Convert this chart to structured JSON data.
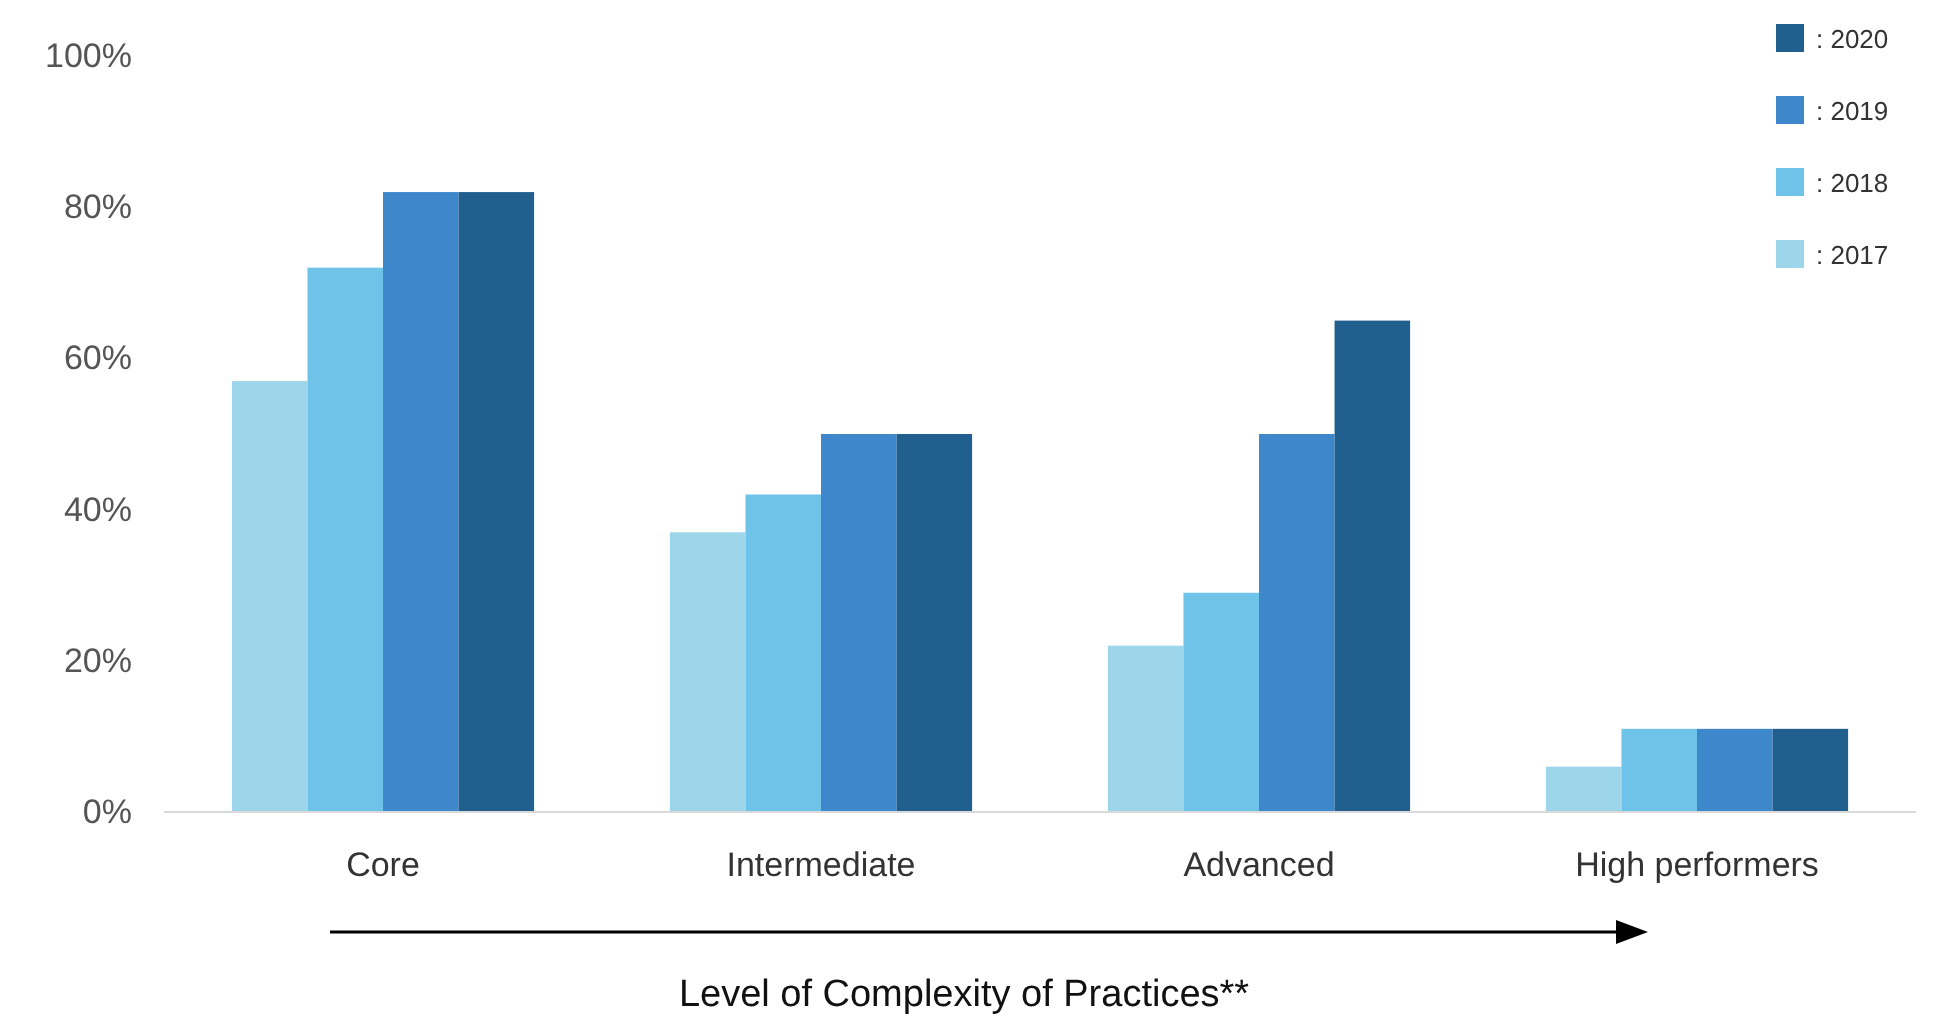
{
  "chart_data": {
    "type": "bar",
    "xlabel": "Level of Complexity of Practices**",
    "categories": [
      "Core",
      "Intermediate",
      "Advanced",
      "High performers"
    ],
    "series": [
      {
        "name": ": 2017",
        "color": "#9dd5ea",
        "values": [
          57,
          37,
          22,
          6
        ]
      },
      {
        "name": ": 2018",
        "color": "#6fc3e8",
        "values": [
          72,
          42,
          29,
          11
        ]
      },
      {
        "name": ": 2019",
        "color": "#3f87cb",
        "values": [
          82,
          50,
          50,
          11
        ]
      },
      {
        "name": ": 2020",
        "color": "#215f8f",
        "values": [
          82,
          50,
          65,
          11
        ]
      }
    ],
    "ylim": [
      0,
      100
    ],
    "yticks": [
      {
        "value": 0,
        "label": "0%"
      },
      {
        "value": 20,
        "label": "20%"
      },
      {
        "value": 40,
        "label": "40%"
      },
      {
        "value": 60,
        "label": "60%"
      },
      {
        "value": 80,
        "label": "80%"
      },
      {
        "value": 100,
        "label": "100%"
      }
    ],
    "grid": false,
    "legend": "top right"
  }
}
